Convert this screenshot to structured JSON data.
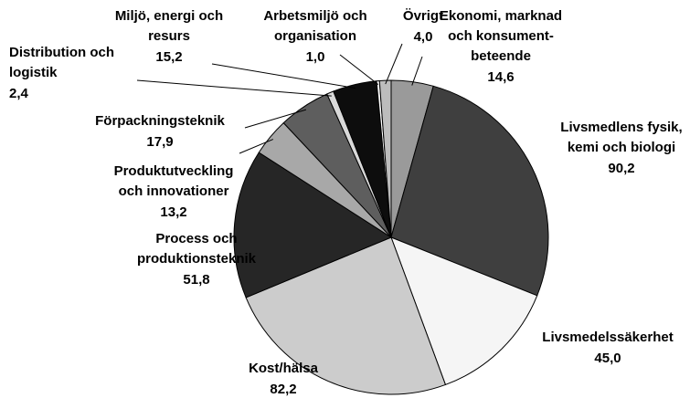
{
  "chart_data": {
    "type": "pie",
    "categories": [
      [
        "Ekonomi, marknad",
        "och konsument-",
        "beteende"
      ],
      [
        "Livsmedlens fysik,",
        "kemi och biologi"
      ],
      [
        "Livsmedelssäkerhet"
      ],
      [
        "Kost/hälsa"
      ],
      [
        "Process och",
        "produktionsteknik"
      ],
      [
        "Produktutveckling",
        "och innovationer"
      ],
      [
        "Förpackningsteknik"
      ],
      [
        "Distribution och",
        "logistik"
      ],
      [
        "Miljö, energi och",
        "resurs"
      ],
      [
        "Arbetsmiljö och",
        "organisation"
      ],
      [
        "Övrigt"
      ]
    ],
    "values": [
      14.6,
      90.2,
      45.0,
      82.2,
      51.8,
      13.2,
      17.9,
      2.4,
      15.2,
      1.0,
      4.0
    ],
    "value_labels": [
      "14,6",
      "90,2",
      "45,0",
      "82,2",
      "51,8",
      "13,2",
      "17,9",
      "2,4",
      "15,2",
      "1,0",
      "4,0"
    ],
    "colors": [
      "#9a9a9a",
      "#3f3f3f",
      "#f5f5f5",
      "#cccccc",
      "#262626",
      "#a8a8a8",
      "#5e5e5e",
      "#d9d9d9",
      "#0d0d0d",
      "#ffffff",
      "#bdbdbd"
    ]
  }
}
